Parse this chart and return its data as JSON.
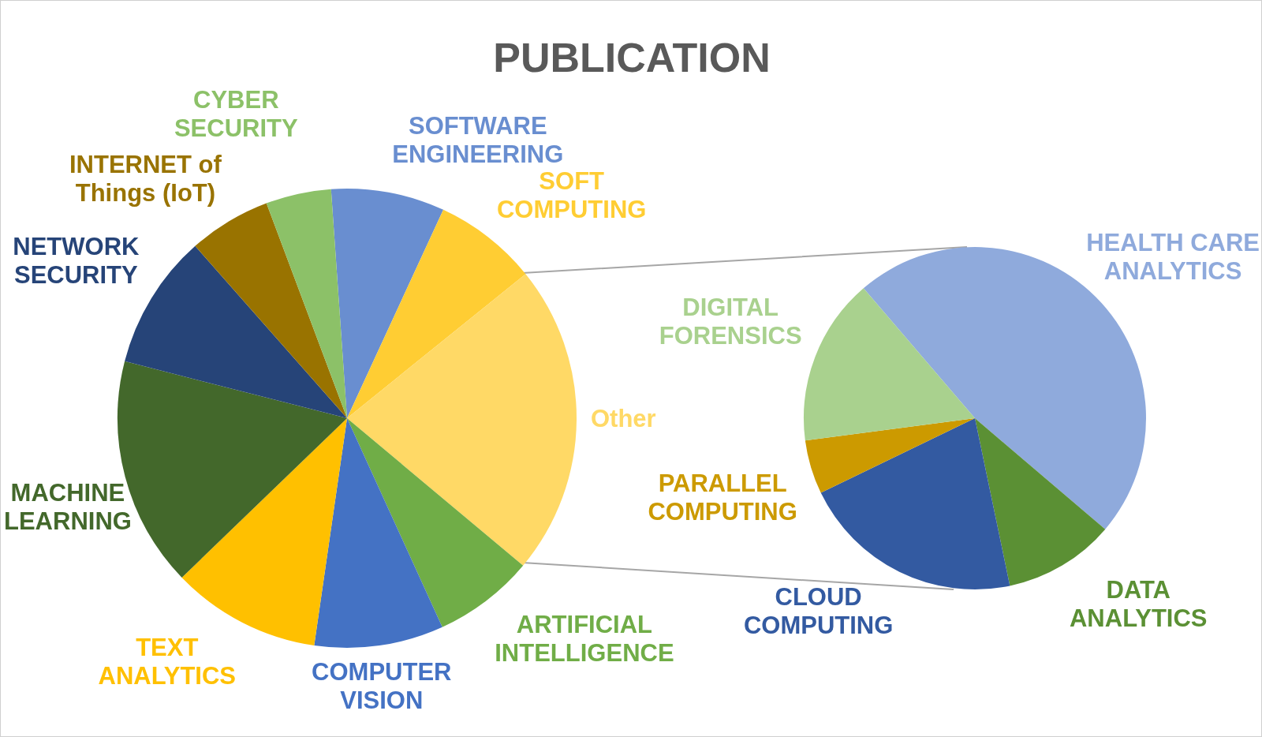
{
  "chart_data": [
    {
      "type": "pie",
      "title": "PUBLICATION",
      "categories": [
        "SOFTWARE ENGINEERING",
        "SOFT COMPUTING",
        "Other",
        "ARTIFICIAL INTELLIGENCE",
        "COMPUTER VISION",
        "TEXT ANALYTICS",
        "MACHINE LEARNING",
        "NETWORK SECURITY",
        "INTERNET of Things (IoT)",
        "CYBER SECURITY"
      ],
      "values": [
        8.0,
        7.3,
        21.9,
        7.1,
        9.1,
        10.5,
        16.2,
        9.5,
        5.8,
        4.6
      ],
      "colors": [
        "#698ed0",
        "#ffcd33",
        "#ffd966",
        "#70ad47",
        "#4472c4",
        "#ffc000",
        "#43682b",
        "#264478",
        "#997300",
        "#8cc168"
      ]
    },
    {
      "type": "pie",
      "categories": [
        "HEALTH CARE ANALYTICS",
        "DATA ANALYTICS",
        "CLOUD COMPUTING",
        "PARALLEL COMPUTING",
        "DIGITAL FORENSICS"
      ],
      "values": [
        47.5,
        10.5,
        21.1,
        5.1,
        15.8
      ],
      "colors": [
        "#8faadc",
        "#5b9034",
        "#335aa1",
        "#cc9a00",
        "#a9d18e"
      ]
    }
  ]
}
